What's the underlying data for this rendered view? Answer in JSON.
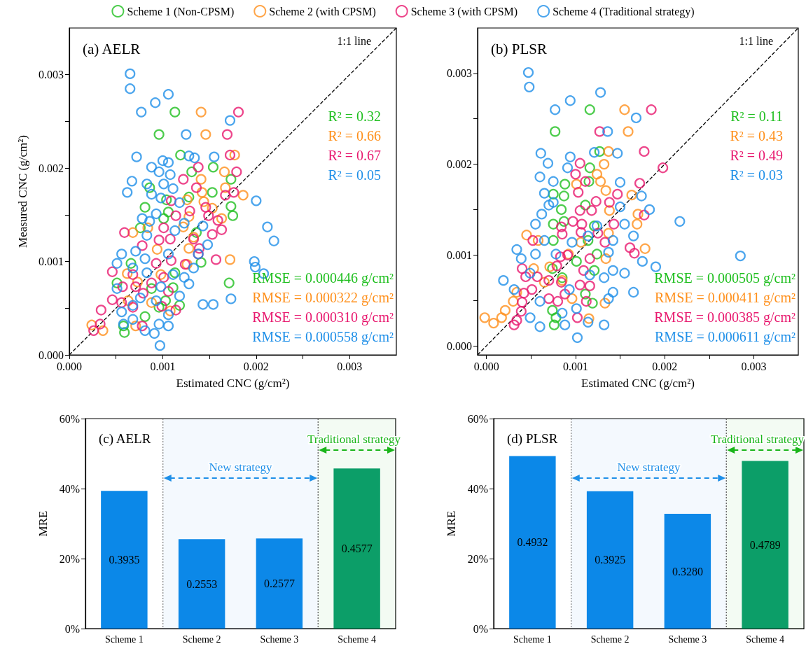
{
  "chart_data": [
    {
      "type": "scatter",
      "title": "(a) AELR",
      "xlabel": "Estimated CNC (g/cm²)",
      "ylabel": "Measured CNC (g/cm²)",
      "legend": "top",
      "marker": "circle",
      "xlim": [
        0,
        0.0035
      ],
      "ylim": [
        0,
        0.0035
      ],
      "xticks": [
        {
          "value": 0,
          "label": "0.000"
        },
        {
          "value": 0.0005,
          "label": null
        },
        {
          "value": 0.001,
          "label": "0.001"
        },
        {
          "value": 0.0015,
          "label": null
        },
        {
          "value": 0.002,
          "label": "0.002"
        },
        {
          "value": 0.0025,
          "label": null
        },
        {
          "value": 0.003,
          "label": "0.003"
        }
      ],
      "yticks": [
        {
          "value": 0,
          "label": "0.000"
        },
        {
          "value": 0.0005,
          "label": null
        },
        {
          "value": 0.001,
          "label": "0.001"
        },
        {
          "value": 0.0015,
          "label": null
        },
        {
          "value": 0.002,
          "label": "0.002"
        },
        {
          "value": 0.0025,
          "label": null
        },
        {
          "value": 0.003,
          "label": "0.003"
        }
      ],
      "annotations": [
        "1:1 line",
        "R² = 0.32",
        "R² = 0.66",
        "R² = 0.67",
        "R² = 0.05",
        "RMSE = 0.000446 g/cm²",
        "RMSE = 0.000322 g/cm²",
        "RMSE = 0.000310 g/cm²",
        "RMSE = 0.000558 g/cm²"
      ],
      "series": [
        {
          "name": "Scheme 1 (Non-CPSM)",
          "color": "#1fbf1f",
          "x": [
            0.00113,
            0.00096,
            0.00119,
            0.00154,
            0.00131,
            0.00173,
            0.00086,
            0.00153,
            0.00104,
            0.00081,
            0.00173,
            0.00175,
            0.00101,
            0.00076,
            0.00136,
            0.00141,
            0.00113,
            0.00171,
            0.00066,
            0.00051,
            0.00118,
            0.00103,
            0.00058,
            0.00059,
            0.00081,
            0.00111,
            0.00088,
            0.00096,
            0.00128,
            0.00106
          ],
          "values": [
            0.0026,
            0.00236,
            0.00214,
            0.00201,
            0.00196,
            0.00188,
            0.00179,
            0.00174,
            0.00166,
            0.00158,
            0.00159,
            0.00149,
            0.00146,
            0.00136,
            0.00131,
            0.00099,
            0.00088,
            0.00077,
            0.00098,
            0.00077,
            0.00053,
            0.00058,
            0.00031,
            0.00024,
            0.00041,
            0.00072,
            0.00071,
            0.00051,
            0.00169,
            0.00153
          ]
        },
        {
          "name": "Scheme 2 (with CPSM)",
          "color": "#ff8f1a",
          "x": [
            0.00141,
            0.00146,
            0.00177,
            0.00166,
            0.00141,
            0.00167,
            0.00186,
            0.00142,
            0.00126,
            0.00144,
            0.00163,
            0.00128,
            0.00084,
            0.00068,
            0.00122,
            0.00094,
            0.00128,
            0.00172,
            0.00126,
            0.00062,
            0.00073,
            0.00063,
            0.00088,
            0.00108,
            0.00036,
            0.00024,
            0.00071,
            0.00098,
            0.00153,
            0.00133
          ],
          "values": [
            0.0026,
            0.00236,
            0.00214,
            0.00196,
            0.00188,
            0.00179,
            0.00171,
            0.00174,
            0.00166,
            0.00164,
            0.00146,
            0.00148,
            0.00136,
            0.00131,
            0.00137,
            0.00113,
            0.00114,
            0.00102,
            0.00097,
            0.00087,
            0.00078,
            0.00058,
            0.00056,
            0.00047,
            0.00026,
            0.00032,
            0.00031,
            0.00086,
            0.00157,
            0.00126
          ]
        },
        {
          "name": "Scheme 3 (with CPSM)",
          "color": "#e8186e",
          "x": [
            0.00181,
            0.00169,
            0.00172,
            0.00138,
            0.00179,
            0.00122,
            0.00136,
            0.00176,
            0.00167,
            0.00109,
            0.00129,
            0.00146,
            0.00114,
            0.00159,
            0.00149,
            0.00163,
            0.00153,
            0.00101,
            0.00059,
            0.00133,
            0.00096,
            0.00108,
            0.00078,
            0.00139,
            0.00138,
            0.00157,
            0.00124,
            0.00109,
            0.00046,
            0.00093,
            0.00101,
            0.00106,
            0.00079,
            0.00057,
            0.00068,
            0.00088,
            0.00046,
            0.00068,
            0.00099,
            0.00114,
            0.00034,
            0.00033,
            0.00026,
            0.00078,
            0.00056,
            0.00071
          ],
          "values": [
            0.0026,
            0.00236,
            0.00214,
            0.00201,
            0.00196,
            0.00188,
            0.00179,
            0.00174,
            0.00171,
            0.00165,
            0.00154,
            0.00158,
            0.00149,
            0.00144,
            0.00149,
            0.00134,
            0.00129,
            0.00136,
            0.00131,
            0.00124,
            0.00123,
            0.00124,
            0.00117,
            0.00114,
            0.00108,
            0.00102,
            0.00097,
            0.00101,
            0.00089,
            0.00098,
            0.00083,
            0.00068,
            0.00066,
            0.00073,
            0.00086,
            0.00077,
            0.00059,
            0.00051,
            0.00052,
            0.00048,
            0.00048,
            0.00033,
            0.00026,
            0.00031,
            0.00056,
            0.00073
          ]
        },
        {
          "name": "Scheme 4 (Traditional strategy)",
          "color": "#1e8fe8",
          "x": [
            0.00065,
            0.00065,
            0.00106,
            0.00092,
            0.00077,
            0.00172,
            0.00125,
            0.00072,
            0.00155,
            0.001,
            0.00088,
            0.00067,
            0.00062,
            0.002,
            0.00212,
            0.00219,
            0.00198,
            0.00199,
            0.00208,
            0.00173,
            0.00143,
            0.00154,
            0.00097,
            0.00128,
            0.00134,
            0.00106,
            0.00096,
            0.00108,
            0.00083,
            0.00101,
            0.00111,
            0.00088,
            0.00098,
            0.00118,
            0.00078,
            0.00086,
            0.00093,
            0.00123,
            0.00143,
            0.00148,
            0.00138,
            0.00106,
            0.00081,
            0.00056,
            0.00051,
            0.00068,
            0.00083,
            0.00098,
            0.00123,
            0.00128,
            0.00118,
            0.00076,
            0.00051,
            0.00056,
            0.00068,
            0.00093,
            0.00106,
            0.00096,
            0.00081,
            0.00058,
            0.00068,
            0.00106,
            0.00091,
            0.00111,
            0.00071,
            0.00113,
            0.00083,
            0.00133
          ],
          "values": [
            0.00301,
            0.00285,
            0.00279,
            0.0027,
            0.0026,
            0.00251,
            0.00236,
            0.00212,
            0.00212,
            0.00208,
            0.00201,
            0.00186,
            0.00174,
            0.00165,
            0.00137,
            0.00122,
            0.001,
            0.00094,
            0.00087,
            0.0006,
            0.00054,
            0.00054,
            0.0001,
            0.00213,
            0.00211,
            0.00206,
            0.00196,
            0.00193,
            0.00183,
            0.00183,
            0.00178,
            0.00172,
            0.00168,
            0.00163,
            0.00146,
            0.00143,
            0.00151,
            0.00141,
            0.00138,
            0.00118,
            0.00108,
            0.00108,
            0.00103,
            0.00108,
            0.00098,
            0.00093,
            0.00088,
            0.00073,
            0.00083,
            0.00076,
            0.00063,
            0.00061,
            0.00071,
            0.00046,
            0.00053,
            0.00058,
            0.00043,
            0.00033,
            0.00026,
            0.00033,
            0.00038,
            0.00031,
            0.00023,
            0.00086,
            0.00111,
            0.00133,
            0.00128,
            0.00093
          ]
        },
        {
          "type": "line",
          "color": "#000000",
          "line_style": "dashed",
          "marker": "none",
          "x": [
            0,
            0.0035
          ],
          "values": [
            0,
            0.0035
          ]
        }
      ]
    },
    {
      "type": "scatter",
      "title": "(b) PLSR",
      "xlabel": "Estimated CNC (g/cm²)",
      "marker": "circle",
      "xlim": [
        -0.0001,
        0.0035
      ],
      "ylim": [
        -0.0001,
        0.0035
      ],
      "xticks": [
        {
          "value": 0,
          "label": "0.000"
        },
        {
          "value": 0.0005,
          "label": null
        },
        {
          "value": 0.001,
          "label": "0.001"
        },
        {
          "value": 0.0015,
          "label": null
        },
        {
          "value": 0.002,
          "label": "0.002"
        },
        {
          "value": 0.0025,
          "label": null
        },
        {
          "value": 0.003,
          "label": "0.003"
        }
      ],
      "yticks": [
        {
          "value": 0,
          "label": "0.000"
        },
        {
          "value": 0.0005,
          "label": null
        },
        {
          "value": 0.001,
          "label": "0.001"
        },
        {
          "value": 0.0015,
          "label": null
        },
        {
          "value": 0.002,
          "label": "0.002"
        },
        {
          "value": 0.0025,
          "label": null
        },
        {
          "value": 0.003,
          "label": "0.003"
        }
      ],
      "annotations": [
        "1:1 line",
        "R² = 0.11",
        "R² = 0.43",
        "R² = 0.49",
        "R² = 0.03",
        "RMSE = 0.000505 g/cm²",
        "RMSE = 0.000411 g/cm²",
        "RMSE = 0.000385 g/cm²",
        "RMSE = 0.000611 g/cm²"
      ],
      "series": [
        {
          "color": "#1fbf1f",
          "x": [
            0.00116,
            0.00077,
            0.00127,
            0.00116,
            0.00088,
            0.00075,
            0.00087,
            0.00084,
            0.00075,
            0.00087,
            0.00075,
            0.00115,
            0.00111,
            0.00121,
            0.00124,
            0.00074,
            0.00076,
            0.00078,
            0.00111,
            0.00119,
            0.00101,
            0.00121,
            0.00114,
            0.00085,
            0.00074
          ],
          "values": [
            0.0026,
            0.00236,
            0.00214,
            0.00196,
            0.00178,
            0.00167,
            0.00165,
            0.0015,
            0.00134,
            0.00137,
            0.00116,
            0.00181,
            0.00155,
            0.00132,
            0.00101,
            0.00085,
            0.00023,
            0.00031,
            0.00057,
            0.00047,
            0.00093,
            0.00083,
            0.00116,
            0.00075,
            0.00039
          ]
        },
        {
          "color": "#ff8f1a",
          "x": [
            0.00155,
            0.00159,
            0.00137,
            0.00132,
            0.00124,
            0.00128,
            0.00134,
            0.00163,
            0.00138,
            0.0017,
            0.00169,
            0.00178,
            0.00134,
            0.00133,
            0.00115,
            0.00045,
            0.00058,
            0.00053,
            0.00034,
            0.0003,
            0.00021,
            0.00017,
            8e-05,
            -2e-05,
            0.00071,
            0.00092,
            0.00096,
            0.00106,
            0.00137,
            0.00101,
            0.00085,
            0.00065
          ],
          "values": [
            0.0026,
            0.00236,
            0.00214,
            0.002,
            0.00189,
            0.00181,
            0.00171,
            0.00166,
            0.00149,
            0.00145,
            0.00134,
            0.00107,
            0.00096,
            0.00047,
            0.0003,
            0.00122,
            0.00116,
            0.00085,
            0.00059,
            0.00049,
            0.00039,
            0.00031,
            0.00025,
            0.00031,
            0.00087,
            0.00101,
            0.00052,
            0.00114,
            0.00124,
            0.00178,
            0.00072,
            0.0007
          ]
        },
        {
          "color": "#e8186e",
          "x": [
            0.00185,
            0.00127,
            0.00177,
            0.00198,
            0.00105,
            0.001,
            0.00111,
            0.00103,
            0.00147,
            0.00172,
            0.00138,
            0.00123,
            0.00105,
            0.00118,
            0.00177,
            0.00097,
            0.00107,
            0.00143,
            0.00084,
            0.00106,
            0.00125,
            0.00085,
            0.00052,
            0.00133,
            0.00161,
            0.00166,
            0.00116,
            0.00083,
            0.00091,
            0.00079,
            0.0004,
            0.00044,
            0.00109,
            0.00057,
            0.0007,
            0.00084,
            0.00105,
            0.00116,
            0.00051,
            0.00042,
            0.0004,
            0.00039,
            0.00034,
            0.00031,
            0.0007,
            0.0008,
            0.00088,
            0.00112,
            0.00102
          ],
          "values": [
            0.0026,
            0.00236,
            0.00214,
            0.00196,
            0.00201,
            0.00189,
            0.00181,
            0.00169,
            0.00167,
            0.00179,
            0.00158,
            0.00159,
            0.00149,
            0.00149,
            0.00144,
            0.00137,
            0.00134,
            0.00134,
            0.00131,
            0.00125,
            0.00124,
            0.00123,
            0.00116,
            0.00114,
            0.00108,
            0.00102,
            0.00096,
            0.00098,
            0.001,
            0.00088,
            0.00085,
            0.00076,
            0.00083,
            0.00076,
            0.00072,
            0.0007,
            0.00067,
            0.00066,
            0.00062,
            0.00058,
            0.00048,
            0.00038,
            0.00028,
            0.00023,
            0.00052,
            0.00049,
            0.00057,
            0.00049,
            0.00031
          ]
        },
        {
          "color": "#1e8fe8",
          "x": [
            0.00047,
            0.00048,
            0.00128,
            0.00094,
            0.00077,
            0.00168,
            0.00136,
            0.00061,
            0.00069,
            0.00094,
            0.00147,
            0.00121,
            0.0006,
            0.00075,
            0.00091,
            0.0015,
            0.00174,
            0.00183,
            0.00217,
            0.00285,
            0.0019,
            0.00165,
            0.00102,
            0.00132,
            0.0006,
            0.00019,
            0.00034,
            0.00039,
            0.00055,
            0.00065,
            0.00062,
            0.00065,
            0.0007,
            0.00085,
            0.00049,
            0.00031,
            0.00132,
            0.00142,
            0.00155,
            0.00175,
            0.00137,
            0.00142,
            0.00124,
            0.00155,
            0.00165,
            0.0015,
            0.00101,
            0.00114,
            0.00088,
            0.00137,
            0.00142,
            0.0006,
            0.00093,
            0.00055,
            0.00075,
            0.00096,
            0.00116,
            0.00049,
            0.00078,
            0.00114
          ],
          "values": [
            0.00301,
            0.00285,
            0.00279,
            0.0027,
            0.0026,
            0.00251,
            0.00236,
            0.00212,
            0.00201,
            0.00208,
            0.00212,
            0.00213,
            0.00186,
            0.00181,
            0.00196,
            0.0018,
            0.00165,
            0.0015,
            0.00137,
            0.00099,
            0.00087,
            0.00059,
            9e-05,
            0.00023,
            0.00021,
            0.00072,
            0.00106,
            0.00096,
            0.00101,
            0.00116,
            0.00145,
            0.00168,
            0.00155,
            0.00036,
            0.00031,
            0.00062,
            0.00075,
            0.00083,
            0.0008,
            0.00093,
            0.00103,
            0.00116,
            0.00132,
            0.00134,
            0.00121,
            0.00153,
            0.00041,
            0.00026,
            0.00023,
            0.00052,
            0.00059,
            0.00049,
            0.00062,
            0.00134,
            0.00158,
            0.00114,
            0.00078,
            0.0008,
            0.00101,
            0.00121
          ]
        },
        {
          "type": "line",
          "color": "#000000",
          "line_style": "dashed",
          "marker": "none",
          "x": [
            -0.0001,
            0.0035
          ],
          "values": [
            -0.0001,
            0.0035
          ]
        }
      ]
    },
    {
      "type": "bar",
      "title": "(c) AELR",
      "ylabel": "MRE",
      "categories": [
        "Scheme 1",
        "Scheme 2",
        "Scheme 3",
        "Scheme 4"
      ],
      "values": [
        0.3935,
        0.2553,
        0.2577,
        0.4577
      ],
      "value_labels": [
        "0.3935",
        "0.2553",
        "0.2577",
        "0.4577"
      ],
      "colors": [
        "#0b88e8",
        "#0b88e8",
        "#0b88e8",
        "#0c9e6d"
      ],
      "ylim": [
        0,
        0.6
      ],
      "yticks": [
        {
          "value": 0,
          "label": "0%"
        },
        {
          "value": 0.2,
          "label": "20%"
        },
        {
          "value": 0.4,
          "label": "40%"
        },
        {
          "value": 0.6,
          "label": "60%"
        }
      ],
      "bands": [
        {
          "axis": "x",
          "from": "Scheme 2",
          "to": "Scheme 3",
          "label": "New strategy",
          "color": "#1e8fe8"
        },
        {
          "axis": "x",
          "from": "Scheme 4",
          "to": "Scheme 4",
          "label": "Traditional strategy",
          "color": "#1ab51a"
        }
      ]
    },
    {
      "type": "bar",
      "title": "(d) PLSR",
      "ylabel": "MRE",
      "categories": [
        "Scheme 1",
        "Scheme 2",
        "Scheme 3",
        "Scheme 4"
      ],
      "values": [
        0.4932,
        0.3925,
        0.328,
        0.4789
      ],
      "value_labels": [
        "0.4932",
        "0.3925",
        "0.3280",
        "0.4789"
      ],
      "colors": [
        "#0b88e8",
        "#0b88e8",
        "#0b88e8",
        "#0c9e6d"
      ],
      "ylim": [
        0,
        0.6
      ],
      "yticks": [
        {
          "value": 0,
          "label": "0%"
        },
        {
          "value": 0.2,
          "label": "20%"
        },
        {
          "value": 0.4,
          "label": "40%"
        },
        {
          "value": 0.6,
          "label": "60%"
        }
      ],
      "bands": [
        {
          "axis": "x",
          "from": "Scheme 2",
          "to": "Scheme 3",
          "label": "New strategy",
          "color": "#1e8fe8"
        },
        {
          "axis": "x",
          "from": "Scheme 4",
          "to": "Scheme 4",
          "label": "Traditional strategy",
          "color": "#1ab51a"
        }
      ]
    }
  ]
}
